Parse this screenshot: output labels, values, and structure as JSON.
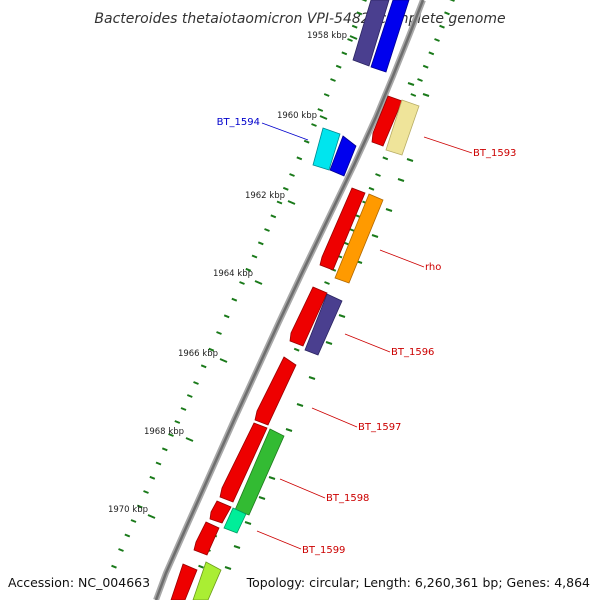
{
  "title": "Bacteroides thetaiotaomicron VPI-5482, complete genome",
  "footer": {
    "accession": "Accession: NC_004663",
    "topology": "Topology: circular; Length: 6,260,361 bp; Genes: 4,864"
  },
  "ticks": [
    {
      "label": "1958 kbp"
    },
    {
      "label": "1960 kbp"
    },
    {
      "label": "1962 kbp"
    },
    {
      "label": "1964 kbp"
    },
    {
      "label": "1966 kbp"
    },
    {
      "label": "1968 kbp"
    },
    {
      "label": "1970 kbp"
    }
  ],
  "genes": [
    {
      "name": "BT_1594",
      "color": "#0000cc"
    },
    {
      "name": "BT_1593",
      "color": "#cc0000"
    },
    {
      "name": "rho",
      "color": "#cc0000"
    },
    {
      "name": "BT_1596",
      "color": "#cc0000"
    },
    {
      "name": "BT_1597",
      "color": "#cc0000"
    },
    {
      "name": "BT_1598",
      "color": "#cc0000"
    },
    {
      "name": "BT_1599",
      "color": "#cc0000"
    }
  ],
  "colors": {
    "backbone": "#888888",
    "tick_major": "#1a7a1a",
    "tick_minor": "#1a7a1a",
    "red": "#ee0000",
    "blue": "#0000ee",
    "slate": "#4a3f8f",
    "cyan": "#00e5ee",
    "khaki": "#efe49a",
    "orange": "#ff9a00",
    "green": "#33bb33",
    "springgreen": "#00ee99",
    "lime": "#aaee33"
  }
}
